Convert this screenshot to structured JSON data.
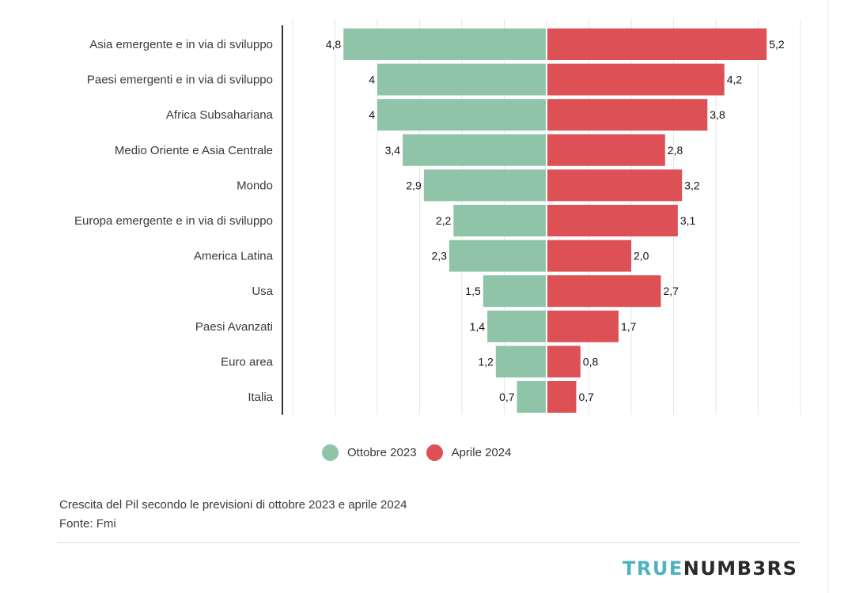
{
  "chart_data": {
    "type": "bar",
    "orientation": "horizontal-diverging",
    "categories": [
      "Asia emergente e in via di sviluppo",
      "Paesi emergenti e in via di sviluppo",
      "Africa Subsahariana",
      "Medio Oriente e Asia Centrale",
      "Mondo",
      "Europa emergente e in via di sviluppo",
      "America Latina",
      "Usa",
      "Paesi Avanzati",
      "Euro area",
      "Italia"
    ],
    "series": [
      {
        "name": "Ottobre 2023",
        "color": "#8fc4a9",
        "side": "left",
        "values": [
          4.8,
          4,
          4,
          3.4,
          2.9,
          2.2,
          2.3,
          1.5,
          1.4,
          1.2,
          0.7
        ],
        "labels": [
          "4,8",
          "4",
          "4",
          "3,4",
          "2,9",
          "2,2",
          "2,3",
          "1,5",
          "1,4",
          "1,2",
          "0,7"
        ]
      },
      {
        "name": "Aprile 2024",
        "color": "#dc5056",
        "side": "right",
        "values": [
          5.2,
          4.2,
          3.8,
          2.8,
          3.2,
          3.1,
          2.0,
          2.7,
          1.7,
          0.8,
          0.7
        ],
        "labels": [
          "5,2",
          "4,2",
          "3,8",
          "2,8",
          "3,2",
          "3,1",
          "2,0",
          "2,7",
          "1,7",
          "0,8",
          "0,7"
        ]
      }
    ],
    "xlim": [
      -6,
      6
    ],
    "grid": true,
    "legend_position": "bottom"
  },
  "caption": {
    "line1": "Crescita del Pil secondo le previsioni di ottobre 2023 e aprile 2024",
    "line2": "Fonte: Fmi"
  },
  "logo": {
    "part1": "TRUE",
    "part2": "NUMB3RS"
  }
}
